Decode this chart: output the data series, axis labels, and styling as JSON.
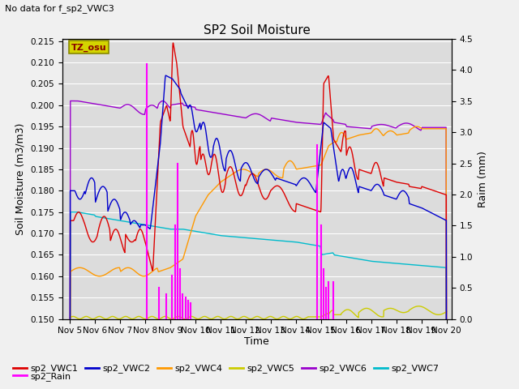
{
  "title": "SP2 Soil Moisture",
  "no_data_text": "No data for f_sp2_VWC3",
  "tz_label": "TZ_osu",
  "ylabel_left": "Soil Moisture (m3/m3)",
  "ylabel_right": "Raim (mm)",
  "xlabel": "Time",
  "ylim_left": [
    0.15,
    0.2155
  ],
  "ylim_right": [
    0.0,
    4.5
  ],
  "bg_color": "#f0f0f0",
  "plot_bg_color": "#e0e0e0",
  "colors": {
    "sp2_VWC1": "#dd0000",
    "sp2_VWC2": "#0000cc",
    "sp2_VWC4": "#ff9900",
    "sp2_VWC5": "#cccc00",
    "sp2_VWC6": "#9900cc",
    "sp2_VWC7": "#00bbcc",
    "sp2_Rain": "#ff00ff"
  },
  "x_start": 4.7,
  "x_end": 20.2,
  "x_ticks": [
    5,
    6,
    7,
    8,
    9,
    10,
    11,
    12,
    13,
    14,
    15,
    16,
    17,
    18,
    19,
    20
  ],
  "x_tick_labels": [
    "Nov 5",
    "Nov 6",
    "Nov 7",
    "Nov 8",
    "Nov 9",
    "Nov 10",
    "Nov 11",
    "Nov 12",
    "Nov 13",
    "Nov 14",
    "Nov 15",
    "Nov 16",
    "Nov 17",
    "Nov 18",
    "Nov 19",
    "Nov 20"
  ],
  "rain_x": [
    8.05,
    8.55,
    8.85,
    9.05,
    9.2,
    9.3,
    9.4,
    9.5,
    9.6,
    9.7,
    9.8,
    14.85,
    15.0,
    15.1,
    15.2,
    15.3,
    15.5
  ],
  "rain_v": [
    4.1,
    0.5,
    0.4,
    0.7,
    1.5,
    2.5,
    0.8,
    0.4,
    0.35,
    0.3,
    0.25,
    2.8,
    1.5,
    0.8,
    0.5,
    0.6,
    0.6
  ]
}
